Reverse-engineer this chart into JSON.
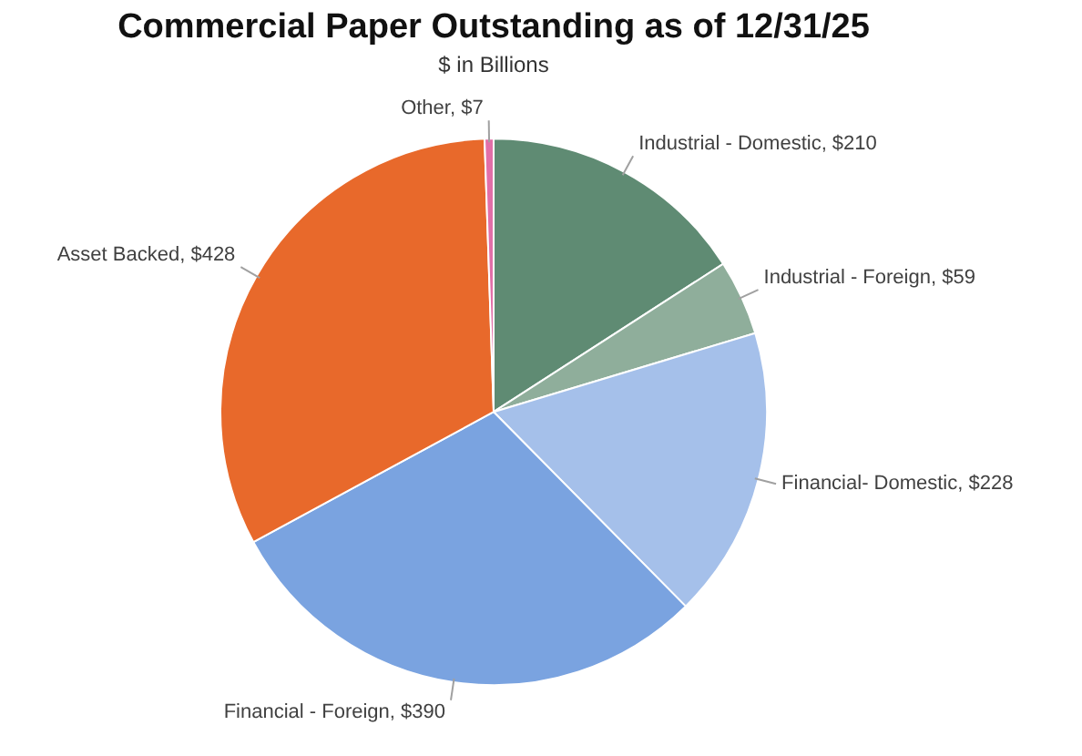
{
  "chart_data": {
    "type": "pie",
    "title": "Commercial Paper Outstanding as of 12/31/25",
    "subtitle": "$ in Billions",
    "categories": [
      "Industrial - Domestic",
      "Industrial - Foreign",
      "Financial- Domestic",
      "Financial - Foreign",
      "Asset Backed",
      "Other"
    ],
    "values": [
      210,
      59,
      228,
      390,
      428,
      7
    ],
    "value_labels": [
      "$210",
      "$59",
      "$228",
      "$390",
      "$428",
      "$7"
    ],
    "colors": [
      "#5f8b73",
      "#8fae9b",
      "#a5c0ea",
      "#7aa3e0",
      "#e8692b",
      "#e26fa8"
    ],
    "legend": false
  }
}
